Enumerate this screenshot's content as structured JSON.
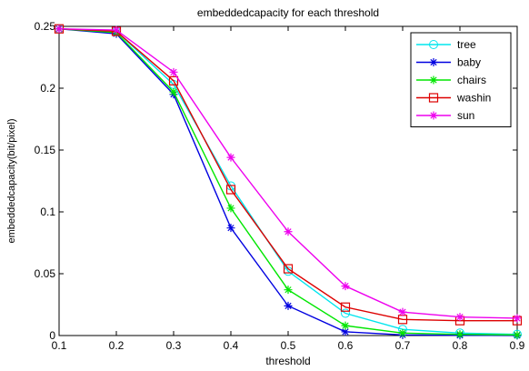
{
  "chart_data": {
    "type": "line",
    "title": "embeddedcapacity for each threshold",
    "xlabel": "threshold",
    "ylabel": "embeddedcapacity(bit/pixel)",
    "xlim": [
      0.1,
      0.9
    ],
    "ylim": [
      0,
      0.25
    ],
    "xticks": [
      "0.1",
      "0.2",
      "0.3",
      "0.4",
      "0.5",
      "0.6",
      "0.7",
      "0.8",
      "0.9"
    ],
    "yticks": [
      "0",
      "0.05",
      "0.1",
      "0.15",
      "0.2",
      "0.25"
    ],
    "grid": false,
    "legend_position": "top-right",
    "x": [
      0.1,
      0.2,
      0.3,
      0.4,
      0.5,
      0.6,
      0.7,
      0.8,
      0.9
    ],
    "series": [
      {
        "name": "tree",
        "color": "#00e5ee",
        "marker": "circle",
        "values": [
          0.248,
          0.246,
          0.203,
          0.121,
          0.052,
          0.018,
          0.005,
          0.002,
          0.001
        ]
      },
      {
        "name": "baby",
        "color": "#0000e0",
        "marker": "star",
        "values": [
          0.248,
          0.244,
          0.195,
          0.087,
          0.024,
          0.003,
          0.0005,
          0.0002,
          0.0001
        ]
      },
      {
        "name": "chairs",
        "color": "#00e600",
        "marker": "star",
        "values": [
          0.248,
          0.245,
          0.197,
          0.103,
          0.037,
          0.008,
          0.002,
          0.001,
          0.0005
        ]
      },
      {
        "name": "washin",
        "color": "#dd0000",
        "marker": "square",
        "values": [
          0.248,
          0.246,
          0.206,
          0.118,
          0.054,
          0.023,
          0.013,
          0.012,
          0.012
        ]
      },
      {
        "name": "sun",
        "color": "#ee00ee",
        "marker": "star",
        "values": [
          0.248,
          0.247,
          0.213,
          0.144,
          0.084,
          0.04,
          0.019,
          0.015,
          0.014
        ]
      }
    ]
  }
}
